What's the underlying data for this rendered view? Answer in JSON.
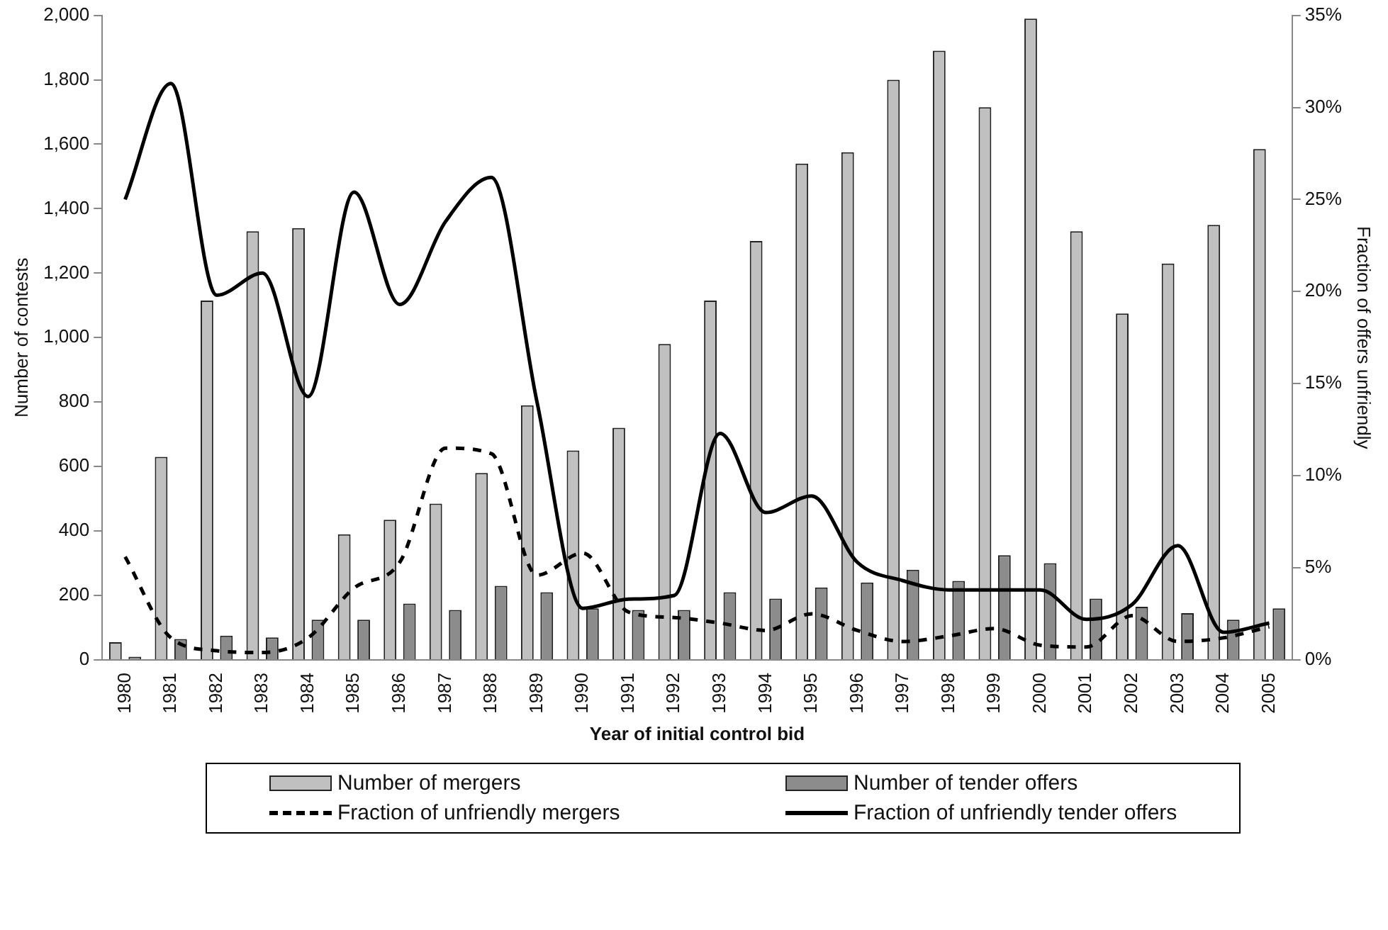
{
  "chart_data": {
    "type": "bar",
    "xlabel": "Year of initial control bid",
    "ylabel": "Number of contests",
    "y2label": "Fraction of offers unfriendly",
    "categories": [
      "1980",
      "1981",
      "1982",
      "1983",
      "1984",
      "1985",
      "1986",
      "1987",
      "1988",
      "1989",
      "1990",
      "1991",
      "1992",
      "1993",
      "1994",
      "1995",
      "1996",
      "1997",
      "1998",
      "1999",
      "2000",
      "2001",
      "2002",
      "2003",
      "2004",
      "2005"
    ],
    "series": [
      {
        "name": "Number of mergers",
        "color": "#c0c0c0",
        "values": [
          55,
          630,
          1115,
          1330,
          1340,
          390,
          435,
          485,
          580,
          790,
          650,
          720,
          980,
          1115,
          1300,
          1540,
          1575,
          1800,
          1890,
          1715,
          1990,
          1330,
          1075,
          1230,
          1350,
          1585
        ]
      },
      {
        "name": "Number of tender offers",
        "color": "#8c8c8c",
        "values": [
          10,
          65,
          75,
          70,
          125,
          125,
          175,
          155,
          230,
          210,
          160,
          155,
          155,
          210,
          190,
          225,
          240,
          280,
          245,
          325,
          300,
          190,
          165,
          145,
          125,
          160
        ]
      },
      {
        "name": "Fraction of unfriendly mergers",
        "type": "line",
        "axis": "y2",
        "line_style": "dashed",
        "color": "#000000",
        "values": [
          5.6,
          1.2,
          0.5,
          0.4,
          1.2,
          3.9,
          5.3,
          11.5,
          11.2,
          4.6,
          5.8,
          2.6,
          2.3,
          2.0,
          1.6,
          2.5,
          1.6,
          1.0,
          1.3,
          1.7,
          0.8,
          0.7,
          2.4,
          1.0,
          1.2,
          1.8
        ]
      },
      {
        "name": "Fraction of unfriendly tender offers",
        "type": "line",
        "axis": "y2",
        "line_style": "solid",
        "color": "#000000",
        "values": [
          25,
          31.3,
          19.8,
          21,
          14.3,
          25.4,
          19.3,
          23.8,
          26.2,
          14,
          2.8,
          3.3,
          3.5,
          12.3,
          8,
          8.9,
          5.3,
          4.3,
          3.8,
          3.8,
          3.8,
          2.2,
          3,
          6.2,
          1.5,
          2
        ]
      }
    ],
    "ylim": [
      0,
      2000
    ],
    "yticks": [
      0,
      200,
      400,
      600,
      800,
      {
        "value": 1000,
        "label": "1,000"
      },
      {
        "value": 1200,
        "label": "1,200"
      },
      {
        "value": 1400,
        "label": "1,400"
      },
      {
        "value": 1600,
        "label": "1,600"
      },
      {
        "value": 1800,
        "label": "1,800"
      },
      {
        "value": 2000,
        "label": "2,000"
      }
    ],
    "y2lim": [
      0,
      35
    ],
    "y2ticks": [
      {
        "value": 0,
        "label": "0%"
      },
      {
        "value": 5,
        "label": "5%"
      },
      {
        "value": 10,
        "label": "10%"
      },
      {
        "value": 15,
        "label": "15%"
      },
      {
        "value": 20,
        "label": "20%"
      },
      {
        "value": 25,
        "label": "25%"
      },
      {
        "value": 30,
        "label": "30%"
      },
      {
        "value": 35,
        "label": "35%"
      }
    ],
    "grid": false,
    "legend": "bottom",
    "marker": "none"
  }
}
